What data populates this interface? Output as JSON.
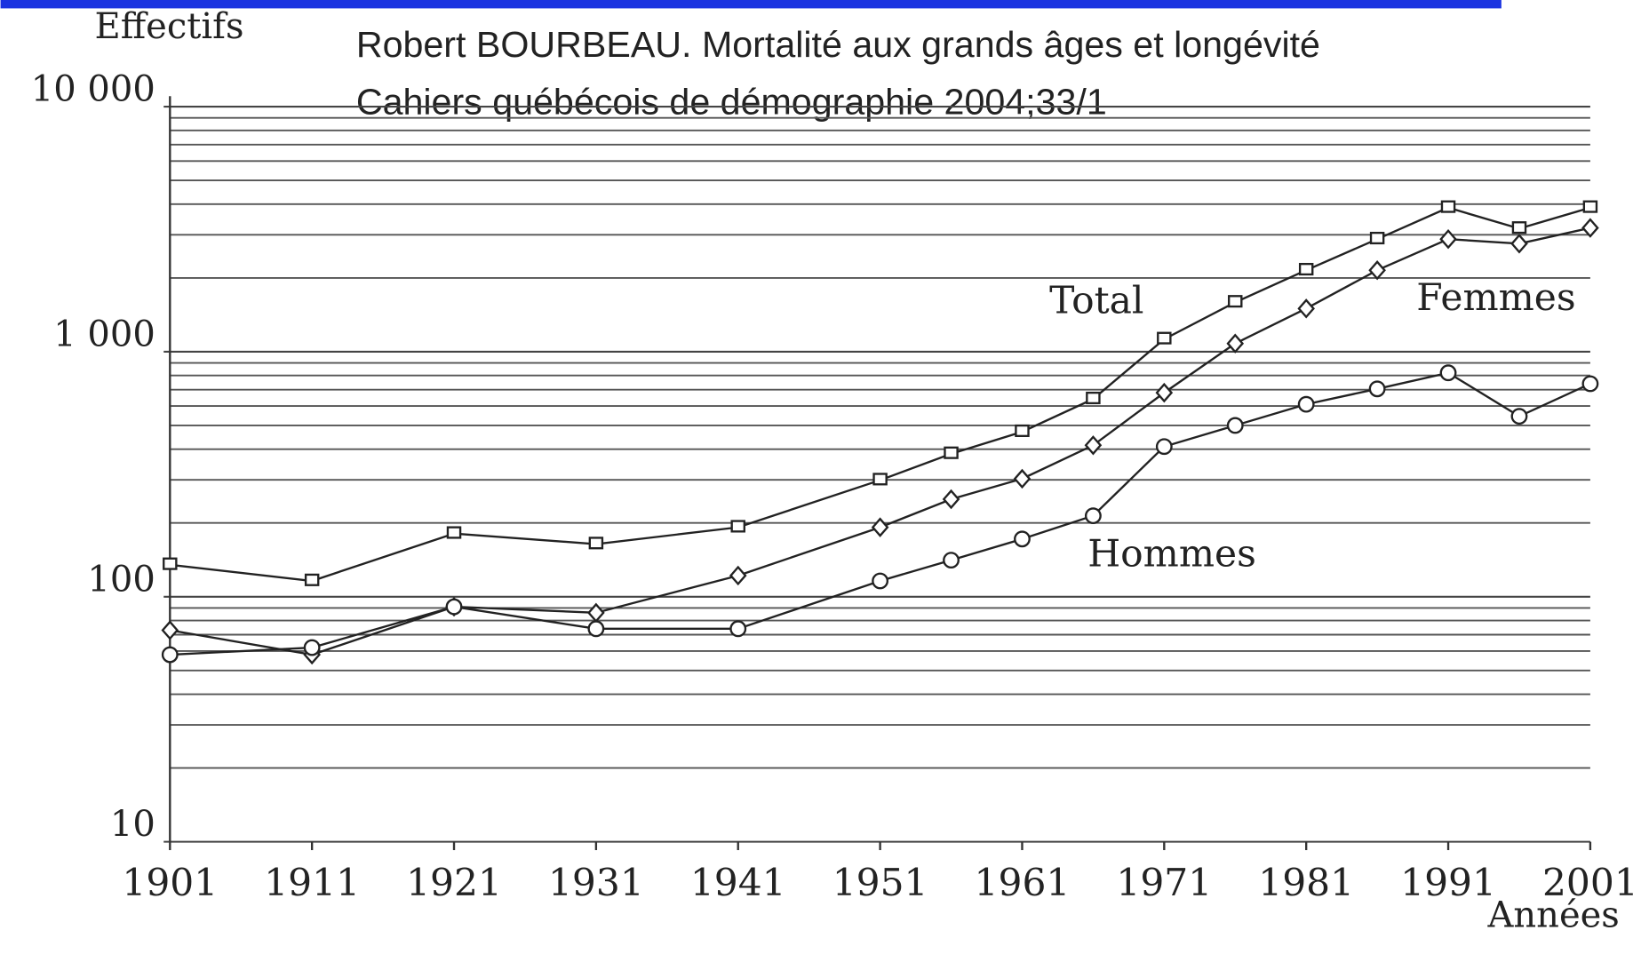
{
  "chart_data": {
    "type": "line",
    "source": [
      "Robert BOURBEAU. Mortalité aux grands âges et longévité",
      "Cahiers québécois de démographie 2004;33/1"
    ],
    "y_label": "Effectifs",
    "x_label": "Années",
    "log_y": true,
    "grid": true,
    "x": [
      1901,
      1911,
      1921,
      1931,
      1941,
      1951,
      1956,
      1961,
      1966,
      1971,
      1976,
      1981,
      1986,
      1991,
      1996,
      2001
    ],
    "xlim": [
      1901,
      2001
    ],
    "xticks": [
      1901,
      1911,
      1921,
      1931,
      1941,
      1951,
      1961,
      1971,
      1981,
      1991,
      2001
    ],
    "ylim": [
      10,
      10000
    ],
    "yticks": [
      10,
      100,
      {
        "value": 1000,
        "label": "1 000"
      },
      {
        "value": 10000,
        "label": "10 000"
      }
    ],
    "minor_yticks": [
      20,
      30,
      40,
      50,
      60,
      70,
      80,
      90,
      200,
      300,
      400,
      500,
      600,
      700,
      800,
      900,
      2000,
      3000,
      4000,
      5000,
      6000,
      7000,
      8000,
      9000
    ],
    "series": [
      {
        "name": "Total",
        "color": "#222222",
        "marker": "square",
        "values": [
          135,
          116,
          181,
          164,
          192,
          299,
          383,
          471,
          641,
          1125,
          1590,
          2150,
          2880,
          3870,
          3180,
          3870
        ]
      },
      {
        "name": "Femmes",
        "color": "#222222",
        "marker": "diamond",
        "values": [
          73,
          58,
          91,
          86,
          122,
          192,
          250,
          303,
          415,
          680,
          1080,
          1500,
          2150,
          2880,
          2760,
          3200
        ]
      },
      {
        "name": "Hommes",
        "color": "#222222",
        "marker": "circle",
        "values": [
          58,
          62,
          91,
          74,
          74,
          116,
          141,
          172,
          214,
          410,
          500,
          610,
          705,
          820,
          545,
          740
        ]
      }
    ]
  }
}
